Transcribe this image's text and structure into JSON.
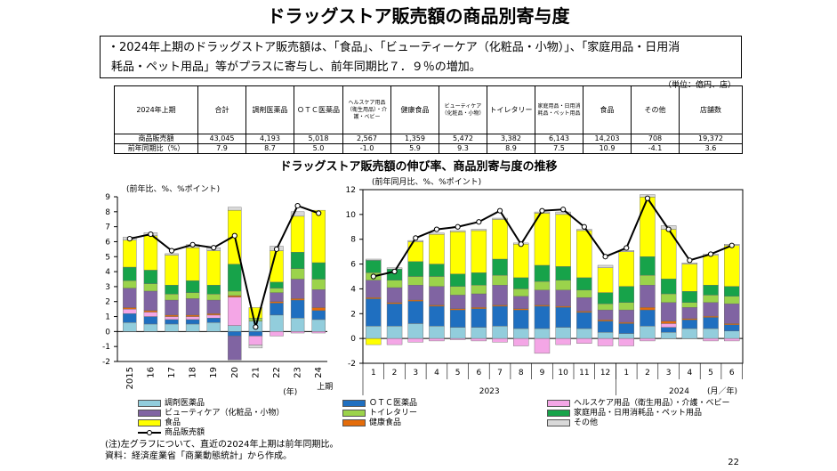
{
  "title": "ドラッグストア販売額の商品別寄与度",
  "summary": {
    "line1": "・2024年上期のドラッグストア販売額は、「食品」、「ビューティーケア（化粧品・小物）」、「家庭用品・日用消",
    "line2": "耗品・ペット用品」等がプラスに寄与し、前年同期比７．９％の増加。"
  },
  "table": {
    "unit": "（単位：億円、店）",
    "corner": "2024年上期",
    "headers": [
      "合計",
      "調剤医薬品",
      "ＯＴＣ医薬品",
      "ヘルスケア用品（衛生用品）・介護・ベビー",
      "健康食品",
      "ビューティケア（化粧品・小物）",
      "トイレタリー",
      "家庭用品・日用消耗品・ペット用品",
      "食品",
      "その他",
      "店舗数"
    ],
    "rows": [
      {
        "label": "商品販売額",
        "values": [
          "43,045",
          "4,193",
          "5,018",
          "2,567",
          "1,359",
          "5,472",
          "3,382",
          "6,143",
          "14,203",
          "708",
          "19,372"
        ]
      },
      {
        "label": "前年同期比（%）",
        "values": [
          "7.9",
          "8.7",
          "5.0",
          "-1.0",
          "5.9",
          "9.3",
          "8.9",
          "7.5",
          "10.9",
          "-4.1",
          "3.6"
        ]
      }
    ]
  },
  "chart_title": "ドラッグストア販売額の伸び率、商品別寄与度の推移",
  "chart_data": [
    {
      "type": "bar",
      "stacked": true,
      "ylabel": "(前年比、%、%ポイント)",
      "ylim": [
        -2,
        9
      ],
      "yticks": [
        "-2",
        "-1",
        "0",
        "1",
        "2",
        "3",
        "4",
        "5",
        "6",
        "7",
        "8",
        "9"
      ],
      "categories": [
        "2015",
        "16",
        "17",
        "18",
        "19",
        "20",
        "21",
        "22",
        "23",
        "24"
      ],
      "xunit": "(年)",
      "last_note": "上期",
      "series": [
        {
          "name": "調剤医薬品",
          "values": [
            0.6,
            0.5,
            0.5,
            0.5,
            0.6,
            0.4,
            0.7,
            1.1,
            0.9,
            0.8
          ]
        },
        {
          "name": "ＯＴＣ医薬品",
          "values": [
            0.6,
            0.5,
            0.3,
            0.3,
            0.3,
            -0.3,
            -0.3,
            0.8,
            1.2,
            0.6
          ]
        },
        {
          "name": "ヘルスケア用品（衛生用品）・介護・ベビー",
          "values": [
            0.3,
            0.3,
            0.2,
            0.2,
            0.2,
            1.9,
            -0.6,
            -0.3,
            -0.1,
            -0.1
          ]
        },
        {
          "name": "健康食品",
          "values": [
            0.1,
            0.1,
            0.1,
            0.1,
            0.1,
            0.1,
            0.0,
            0.1,
            0.1,
            0.2
          ]
        },
        {
          "name": "ビューティケア（化粧品・小物）",
          "values": [
            1.3,
            1.3,
            1.0,
            1.1,
            0.9,
            -1.6,
            0.0,
            0.6,
            1.3,
            1.2
          ]
        },
        {
          "name": "トイレタリー",
          "values": [
            0.5,
            0.5,
            0.4,
            0.4,
            0.4,
            0.3,
            0.2,
            0.3,
            0.7,
            0.7
          ]
        },
        {
          "name": "家庭用品・日用消耗品・ペット用品",
          "values": [
            0.9,
            0.9,
            0.6,
            0.8,
            0.6,
            1.8,
            0.0,
            0.4,
            1.1,
            1.1
          ]
        },
        {
          "name": "食品",
          "values": [
            1.8,
            2.3,
            2.0,
            2.2,
            2.3,
            3.6,
            0.7,
            2.1,
            2.4,
            3.5
          ]
        },
        {
          "name": "その他",
          "values": [
            0.2,
            0.2,
            0.1,
            0.2,
            0.2,
            0.2,
            -0.2,
            0.3,
            0.3,
            0.0
          ]
        }
      ],
      "line": {
        "name": "商品販売額",
        "values": [
          6.2,
          6.5,
          5.4,
          5.8,
          5.6,
          6.4,
          0.3,
          5.5,
          8.4,
          7.9
        ]
      }
    },
    {
      "type": "bar",
      "stacked": true,
      "ylabel": "(前年同月比、%、%ポイント)",
      "ylim": [
        -2,
        12
      ],
      "yticks": [
        "-2",
        "0",
        "2",
        "4",
        "6",
        "8",
        "10",
        "12"
      ],
      "categories": [
        "1",
        "2",
        "3",
        "4",
        "5",
        "6",
        "7",
        "8",
        "9",
        "10",
        "11",
        "12",
        "1",
        "2",
        "3",
        "4",
        "5",
        "6"
      ],
      "year_labels": [
        "2023",
        "2024"
      ],
      "xunit": "(月／年)",
      "series": [
        {
          "name": "調剤医薬品",
          "values": [
            1.0,
            1.0,
            1.2,
            1.0,
            0.9,
            0.9,
            1.0,
            0.8,
            0.8,
            0.9,
            0.8,
            0.5,
            0.4,
            1.0,
            0.5,
            0.8,
            0.8,
            0.6
          ]
        },
        {
          "name": "ＯＴＣ医薬品",
          "values": [
            2.2,
            1.8,
            1.8,
            1.6,
            1.4,
            1.5,
            1.6,
            1.5,
            1.8,
            1.6,
            1.3,
            0.9,
            0.8,
            1.3,
            0.4,
            0.7,
            0.9,
            0.5
          ]
        },
        {
          "name": "ヘルスケア用品（衛生用品）・介護・ベビー",
          "values": [
            0.0,
            -0.5,
            -0.3,
            -0.2,
            -0.1,
            -0.2,
            -0.3,
            -0.6,
            -1.2,
            -0.5,
            -0.4,
            -0.6,
            -0.6,
            -0.2,
            0.3,
            0.0,
            -0.2,
            -0.2
          ]
        },
        {
          "name": "健康食品",
          "values": [
            0.1,
            0.1,
            0.1,
            0.1,
            0.1,
            0.1,
            0.1,
            0.1,
            0.1,
            0.1,
            0.1,
            0.1,
            0.1,
            0.2,
            0.2,
            0.1,
            0.1,
            0.1
          ]
        },
        {
          "name": "ビューティケア（化粧品・小物）",
          "values": [
            1.4,
            1.2,
            1.2,
            1.5,
            1.1,
            1.1,
            1.6,
            1.0,
            1.2,
            1.3,
            1.1,
            0.8,
            1.0,
            1.8,
            1.5,
            0.9,
            1.1,
            1.6
          ]
        },
        {
          "name": "トイレタリー",
          "values": [
            0.6,
            0.6,
            0.7,
            0.8,
            0.7,
            0.7,
            0.8,
            0.6,
            0.7,
            0.8,
            0.6,
            0.5,
            0.6,
            0.8,
            0.7,
            0.4,
            0.6,
            0.6
          ]
        },
        {
          "name": "家庭用品・日用消耗品・ペット用品",
          "values": [
            1.0,
            0.9,
            1.2,
            1.0,
            1.0,
            1.0,
            1.3,
            0.9,
            1.3,
            1.1,
            1.0,
            0.9,
            1.3,
            1.5,
            1.2,
            0.9,
            0.8,
            0.8
          ]
        },
        {
          "name": "食品",
          "values": [
            -0.5,
            0.0,
            1.6,
            2.4,
            3.4,
            3.4,
            3.2,
            2.7,
            4.2,
            4.2,
            3.8,
            2.0,
            2.8,
            4.8,
            4.0,
            2.2,
            2.4,
            3.3
          ]
        },
        {
          "name": "その他",
          "values": [
            0.1,
            0.1,
            0.1,
            0.1,
            0.1,
            0.1,
            0.1,
            0.1,
            0.1,
            0.2,
            0.1,
            0.2,
            0.1,
            0.2,
            0.3,
            0.1,
            0.1,
            0.1
          ]
        }
      ],
      "line": {
        "name": "商品販売額",
        "values": [
          5.0,
          5.4,
          8.1,
          8.8,
          9.0,
          9.4,
          10.3,
          7.6,
          10.3,
          10.4,
          9.0,
          6.6,
          7.3,
          11.3,
          8.8,
          6.3,
          6.8,
          7.5
        ]
      }
    }
  ],
  "legend": [
    {
      "name": "調剤医薬品",
      "color": "#92CDDC",
      "kind": "bar"
    },
    {
      "name": "ＯＴＣ医薬品",
      "color": "#1F6FC0",
      "kind": "bar"
    },
    {
      "name": "ヘルスケア用品（衛生用品）・介護・ベビー",
      "color": "#F4A6E6",
      "kind": "bar"
    },
    {
      "name": "ビューティケア（化粧品・小物）",
      "color": "#8064A2",
      "kind": "bar"
    },
    {
      "name": "トイレタリー",
      "color": "#9BD34B",
      "kind": "bar"
    },
    {
      "name": "家庭用品・日用消耗品・ペット用品",
      "color": "#17A34A",
      "kind": "bar"
    },
    {
      "name": "食品",
      "color": "#FFFF00",
      "kind": "bar"
    },
    {
      "name": "健康食品",
      "color": "#E46C0A",
      "kind": "bar"
    },
    {
      "name": "その他",
      "color": "#D9D9D9",
      "kind": "bar"
    },
    {
      "name": "商品販売額",
      "color": "#000000",
      "kind": "line"
    }
  ],
  "series_colors": [
    "#92CDDC",
    "#1F6FC0",
    "#F4A6E6",
    "#E46C0A",
    "#8064A2",
    "#9BD34B",
    "#17A34A",
    "#FFFF00",
    "#D9D9D9"
  ],
  "notes": {
    "line1": "(注)左グラフについて、直近の2024年上期は前年同期比。",
    "line2": "資料：経済産業省「商業動態統計」から作成。"
  },
  "page_number": "22"
}
